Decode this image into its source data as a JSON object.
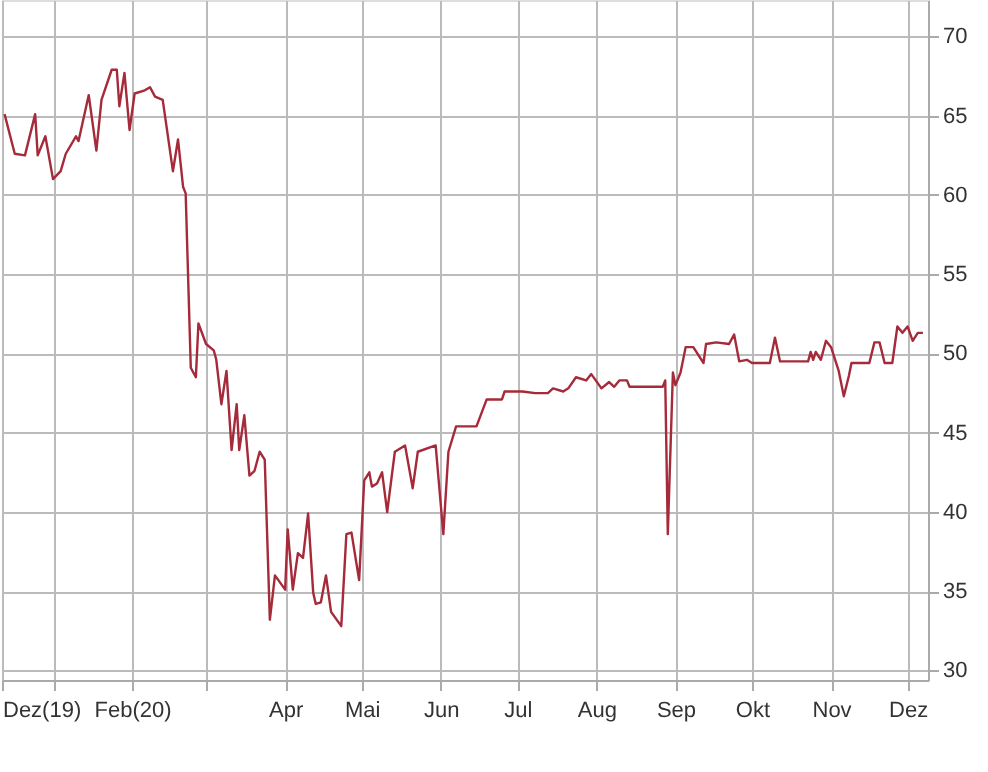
{
  "chart_data": {
    "type": "line",
    "x": [
      "2019-12-13",
      "2019-12-17",
      "2019-12-21",
      "2019-12-25",
      "2019-12-26",
      "2019-12-29",
      "2020-01-01",
      "2020-01-04",
      "2020-01-06",
      "2020-01-10",
      "2020-01-11",
      "2020-01-15",
      "2020-01-18",
      "2020-01-20",
      "2020-01-24",
      "2020-01-26",
      "2020-01-27",
      "2020-01-29",
      "2020-01-31",
      "2020-02-02",
      "2020-02-06",
      "2020-02-08",
      "2020-02-10",
      "2020-02-13",
      "2020-02-17",
      "2020-02-19",
      "2020-02-21",
      "2020-02-22",
      "2020-02-24",
      "2020-02-26",
      "2020-02-27",
      "2020-03-01",
      "2020-03-04",
      "2020-03-05",
      "2020-03-07",
      "2020-03-09",
      "2020-03-11",
      "2020-03-13",
      "2020-03-14",
      "2020-03-16",
      "2020-03-18",
      "2020-03-20",
      "2020-03-22",
      "2020-03-24",
      "2020-03-26",
      "2020-03-28",
      "2020-04-01",
      "2020-04-02",
      "2020-04-04",
      "2020-04-06",
      "2020-04-08",
      "2020-04-10",
      "2020-04-12",
      "2020-04-13",
      "2020-04-15",
      "2020-04-17",
      "2020-04-19",
      "2020-04-23",
      "2020-04-25",
      "2020-04-27",
      "2020-04-30",
      "2020-05-02",
      "2020-05-04",
      "2020-05-05",
      "2020-05-07",
      "2020-05-09",
      "2020-05-11",
      "2020-05-14",
      "2020-05-18",
      "2020-05-21",
      "2020-05-23",
      "2020-05-30",
      "2020-06-02",
      "2020-06-04",
      "2020-06-07",
      "2020-06-15",
      "2020-06-19",
      "2020-06-25",
      "2020-06-26",
      "2020-07-03",
      "2020-07-08",
      "2020-07-13",
      "2020-07-15",
      "2020-07-19",
      "2020-07-21",
      "2020-07-24",
      "2020-07-28",
      "2020-07-30",
      "2020-08-03",
      "2020-08-06",
      "2020-08-08",
      "2020-08-10",
      "2020-08-13",
      "2020-08-14",
      "2020-08-27",
      "2020-08-28",
      "2020-08-29",
      "2020-08-31",
      "2020-09-01",
      "2020-09-03",
      "2020-09-05",
      "2020-09-08",
      "2020-09-12",
      "2020-09-13",
      "2020-09-17",
      "2020-09-22",
      "2020-09-24",
      "2020-09-26",
      "2020-09-29",
      "2020-10-01",
      "2020-10-08",
      "2020-10-10",
      "2020-10-12",
      "2020-10-23",
      "2020-10-24",
      "2020-10-25",
      "2020-10-26",
      "2020-10-28",
      "2020-10-30",
      "2020-11-01",
      "2020-11-04",
      "2020-11-06",
      "2020-11-08",
      "2020-11-09",
      "2020-11-16",
      "2020-11-18",
      "2020-11-20",
      "2020-11-22",
      "2020-11-25",
      "2020-11-27",
      "2020-11-29",
      "2020-12-01",
      "2020-12-03",
      "2020-12-05",
      "2020-12-07"
    ],
    "series": [
      {
        "color": "#a52a3a",
        "values": [
          65.1,
          62.6,
          62.5,
          65.1,
          62.5,
          63.7,
          61.0,
          61.5,
          62.6,
          63.7,
          63.4,
          66.3,
          62.8,
          66.0,
          67.9,
          67.9,
          65.6,
          67.7,
          64.1,
          66.4,
          66.6,
          66.8,
          66.2,
          66.0,
          61.5,
          63.5,
          60.5,
          60.1,
          49.1,
          48.5,
          51.9,
          50.6,
          50.2,
          49.6,
          46.8,
          48.9,
          43.9,
          46.8,
          43.9,
          46.1,
          42.3,
          42.6,
          43.8,
          43.3,
          33.2,
          36.0,
          35.1,
          38.9,
          35.1,
          37.4,
          37.1,
          39.9,
          34.9,
          34.2,
          34.3,
          36.0,
          33.7,
          32.8,
          38.6,
          38.7,
          35.7,
          42.0,
          42.5,
          41.6,
          41.8,
          42.5,
          40.0,
          43.8,
          44.2,
          41.5,
          43.8,
          44.2,
          38.6,
          43.8,
          45.4,
          45.4,
          47.1,
          47.1,
          47.6,
          47.6,
          47.5,
          47.5,
          47.8,
          47.6,
          47.8,
          48.5,
          48.3,
          48.7,
          47.8,
          48.2,
          47.9,
          48.3,
          48.3,
          47.9,
          47.9,
          48.3,
          38.6,
          48.8,
          48.0,
          48.8,
          50.4,
          50.4,
          49.4,
          50.6,
          50.7,
          50.6,
          51.2,
          49.5,
          49.6,
          49.4,
          49.4,
          51.0,
          49.5,
          49.5,
          50.1,
          49.6,
          50.1,
          49.6,
          50.8,
          50.4,
          48.9,
          47.3,
          48.6,
          49.4,
          49.4,
          50.7,
          50.7,
          49.4,
          49.4,
          51.7,
          51.3,
          51.7,
          50.8,
          51.3,
          51.3
        ]
      }
    ],
    "xlim": [
      "2019-12-12",
      "2020-12-09"
    ],
    "xticks": [
      {
        "value": "2019-12-12",
        "label": "Dez(19)"
      },
      {
        "value": "2020-01-01",
        "label": null
      },
      {
        "value": "2020-02-01",
        "label": "Feb(20)"
      },
      {
        "value": "2020-03-01",
        "label": null
      },
      {
        "value": "2020-04-01",
        "label": "Apr"
      },
      {
        "value": "2020-05-01",
        "label": "Mai"
      },
      {
        "value": "2020-06-01",
        "label": "Jun"
      },
      {
        "value": "2020-07-01",
        "label": "Jul"
      },
      {
        "value": "2020-08-01",
        "label": "Aug"
      },
      {
        "value": "2020-09-01",
        "label": "Sep"
      },
      {
        "value": "2020-10-01",
        "label": "Okt"
      },
      {
        "value": "2020-11-01",
        "label": "Nov"
      },
      {
        "value": "2020-12-01",
        "label": "Dez"
      }
    ],
    "ylim": [
      29.4,
      72.3
    ],
    "yticks": [
      30,
      35,
      40,
      45,
      50,
      55,
      60,
      65,
      70
    ],
    "grid": true
  }
}
